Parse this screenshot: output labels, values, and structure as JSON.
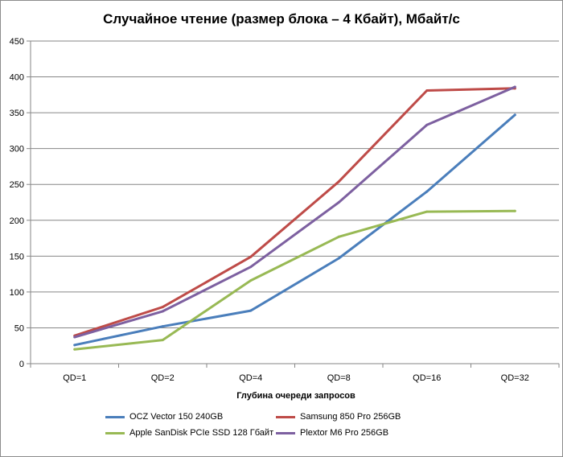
{
  "chart_data": {
    "type": "line",
    "title": "Случайное чтение (размер блока – 4 Кбайт), Мбайт/с",
    "xlabel": "Глубина очереди запросов",
    "ylabel": "",
    "categories": [
      "QD=1",
      "QD=2",
      "QD=4",
      "QD=8",
      "QD=16",
      "QD=32"
    ],
    "ylim": [
      0,
      450
    ],
    "yticks": [
      0,
      50,
      100,
      150,
      200,
      250,
      300,
      350,
      400,
      450
    ],
    "grid": true,
    "legend_position": "bottom",
    "series": [
      {
        "name": "OCZ Vector 150 240GB",
        "color": "#4a7ebb",
        "values": [
          26,
          52,
          74,
          147,
          240,
          347
        ]
      },
      {
        "name": "Samsung 850 Pro 256GB",
        "color": "#be4b48",
        "values": [
          39,
          79,
          149,
          254,
          381,
          384
        ]
      },
      {
        "name": "Apple SanDisk PCIe SSD 128 Гбайт",
        "color": "#98b954",
        "values": [
          20,
          33,
          116,
          177,
          212,
          213
        ]
      },
      {
        "name": "Plextor M6 Pro 256GB",
        "color": "#7d60a0",
        "values": [
          37,
          73,
          135,
          225,
          333,
          386
        ]
      }
    ]
  }
}
